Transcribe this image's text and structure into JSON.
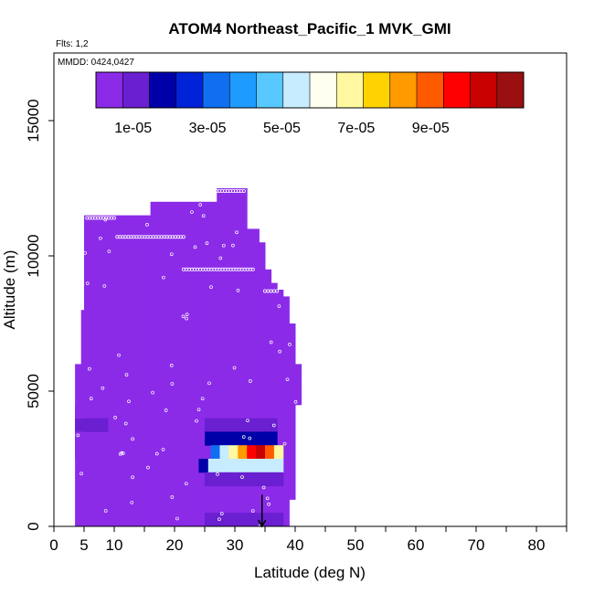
{
  "chart_data": {
    "type": "heatmap",
    "title": "ATOM4 Northeast_Pacific_1 MVK_GMI",
    "annotations": [
      "Flts: 1,2",
      "MMDD: 0424,0427"
    ],
    "xlabel": "Latitude (deg N)",
    "ylabel": "Altitude (m)",
    "xlim": [
      0,
      85
    ],
    "ylim": [
      0,
      17500
    ],
    "x_ticks": [
      0,
      5,
      10,
      20,
      30,
      40,
      50,
      60,
      70,
      80
    ],
    "y_ticks": [
      0,
      5000,
      10000,
      15000
    ],
    "colorbar": {
      "range": [
        0,
        0.000115
      ],
      "tick_labels": [
        "1e-05",
        "3e-05",
        "5e-05",
        "7e-05",
        "9e-05"
      ],
      "tick_values": [
        1e-05,
        3e-05,
        5e-05,
        7e-05,
        9e-05
      ],
      "colors": [
        "#8b2be8",
        "#6a1fd0",
        "#0000a8",
        "#0022d8",
        "#0f6ff0",
        "#1e9bff",
        "#58c8ff",
        "#c8ecff",
        "#fffff0",
        "#fff8a0",
        "#ffd200",
        "#ff9a00",
        "#ff5a00",
        "#ff0000",
        "#c80000",
        "#9a1010"
      ]
    },
    "background_value": 5e-07,
    "columns": [
      {
        "lat": [
          3.5,
          4.5
        ],
        "alt": [
          0,
          6000
        ]
      },
      {
        "lat": [
          4.5,
          5
        ],
        "alt": [
          0,
          8000
        ]
      },
      {
        "lat": [
          5,
          7
        ],
        "alt": [
          0,
          11500
        ]
      },
      {
        "lat": [
          7,
          16
        ],
        "alt": [
          0,
          11500
        ]
      },
      {
        "lat": [
          16,
          24
        ],
        "alt": [
          0,
          12000
        ]
      },
      {
        "lat": [
          24,
          27
        ],
        "alt": [
          0,
          12000
        ]
      },
      {
        "lat": [
          27,
          32
        ],
        "alt": [
          0,
          12500
        ]
      },
      {
        "lat": [
          32,
          34
        ],
        "alt": [
          0,
          11000
        ]
      },
      {
        "lat": [
          34,
          35
        ],
        "alt": [
          0,
          10500
        ]
      },
      {
        "lat": [
          35,
          36
        ],
        "alt": [
          0,
          9500
        ]
      },
      {
        "lat": [
          36,
          37
        ],
        "alt": [
          0,
          9000
        ]
      },
      {
        "lat": [
          37,
          38
        ],
        "alt": [
          0,
          8750
        ]
      },
      {
        "lat": [
          38,
          39
        ],
        "alt": [
          0,
          8500
        ]
      },
      {
        "lat": [
          39,
          40
        ],
        "alt": [
          1000,
          7500
        ]
      },
      {
        "lat": [
          40,
          41
        ],
        "alt": [
          4500,
          6000
        ]
      }
    ],
    "cells": [
      {
        "lat": [
          3.5,
          9
        ],
        "alt": [
          3500,
          4000
        ],
        "value": 1e-05
      },
      {
        "lat": [
          9,
          11
        ],
        "alt": [
          3500,
          4000
        ],
        "value": 7e-06
      },
      {
        "lat": [
          11,
          13
        ],
        "alt": [
          3500,
          4000
        ],
        "value": 3e-06
      },
      {
        "lat": [
          3.5,
          5
        ],
        "alt": [
          4000,
          4500
        ],
        "value": 5e-06
      },
      {
        "lat": [
          3.5,
          5
        ],
        "alt": [
          3000,
          3500
        ],
        "value": 4e-06
      },
      {
        "lat": [
          3.5,
          7
        ],
        "alt": [
          2500,
          3000
        ],
        "value": 2e-06
      },
      {
        "lat": [
          25,
          37
        ],
        "alt": [
          3500,
          4000
        ],
        "value": 1.2e-05
      },
      {
        "lat": [
          25,
          37
        ],
        "alt": [
          3000,
          3500
        ],
        "value": 1.8e-05
      },
      {
        "lat": [
          26,
          27.5
        ],
        "alt": [
          2500,
          3000
        ],
        "value": 3.2e-05
      },
      {
        "lat": [
          27.5,
          29
        ],
        "alt": [
          2500,
          3000
        ],
        "value": 5.5e-05
      },
      {
        "lat": [
          29,
          30.5
        ],
        "alt": [
          2500,
          3000
        ],
        "value": 7e-05
      },
      {
        "lat": [
          30.5,
          32
        ],
        "alt": [
          2500,
          3000
        ],
        "value": 8.5e-05
      },
      {
        "lat": [
          32,
          33.5
        ],
        "alt": [
          2500,
          3000
        ],
        "value": 9.75e-05
      },
      {
        "lat": [
          33.5,
          35
        ],
        "alt": [
          2500,
          3000
        ],
        "value": 0.000107
      },
      {
        "lat": [
          35,
          36.5
        ],
        "alt": [
          2500,
          3000
        ],
        "value": 9e-05
      },
      {
        "lat": [
          36.5,
          38
        ],
        "alt": [
          2500,
          3000
        ],
        "value": 7e-05
      },
      {
        "lat": [
          25,
          38
        ],
        "alt": [
          2000,
          2500
        ],
        "value": 5.1e-05
      },
      {
        "lat": [
          24,
          25.5
        ],
        "alt": [
          2000,
          2500
        ],
        "value": 1.5e-05
      },
      {
        "lat": [
          25,
          38
        ],
        "alt": [
          1500,
          2000
        ],
        "value": 1.2e-05
      },
      {
        "lat": [
          25,
          38
        ],
        "alt": [
          500,
          1000
        ],
        "value": 6e-06
      },
      {
        "lat": [
          25,
          38
        ],
        "alt": [
          0,
          500
        ],
        "value": 1e-05
      }
    ],
    "arrow": {
      "lat": 34.5,
      "alt_top": 700,
      "alt_bottom": 0
    },
    "flight_tracks": [
      {
        "lat_start": 5.5,
        "lat_end": 10,
        "alt": 11400
      },
      {
        "lat_start": 10.5,
        "lat_end": 21.5,
        "alt": 10700
      },
      {
        "lat_start": 21.5,
        "lat_end": 33,
        "alt": 9500
      },
      {
        "lat_start": 27,
        "lat_end": 31.5,
        "alt": 12400
      },
      {
        "lat_start": 35,
        "lat_end": 37,
        "alt": 8700
      }
    ]
  }
}
